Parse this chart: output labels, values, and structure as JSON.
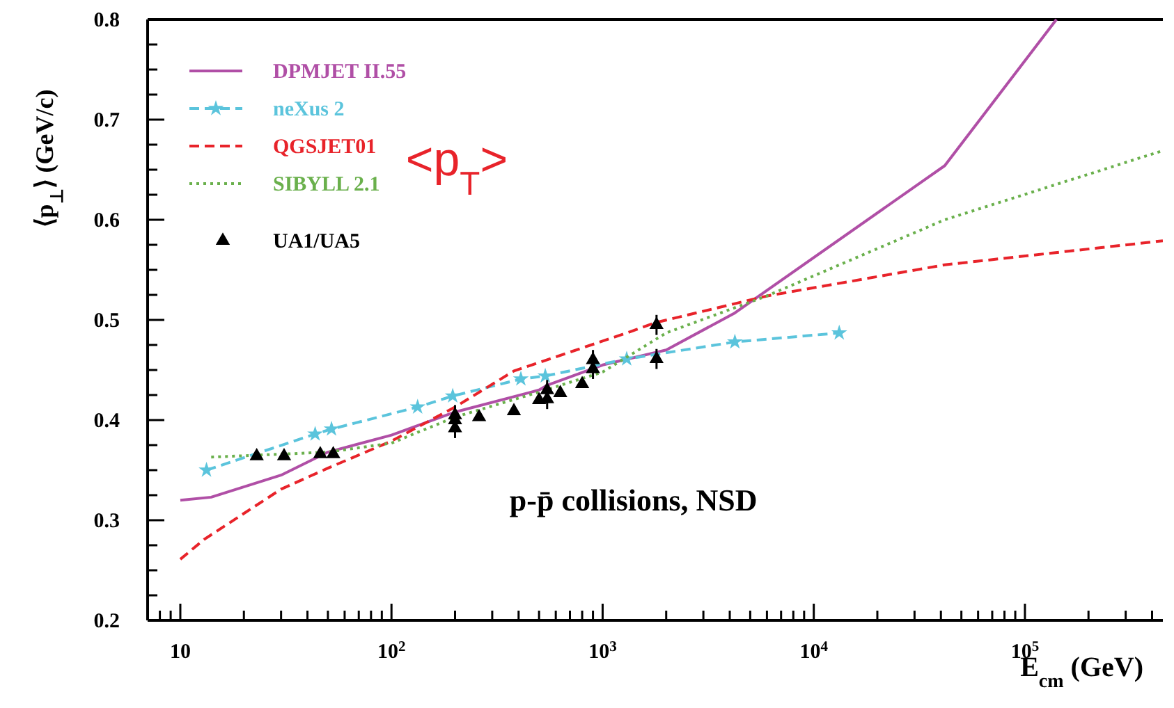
{
  "chart_data": {
    "type": "line",
    "xlabel": "E$_{cm}$ (GeV)",
    "ylabel": "⟨p$_{⊥}$⟩  (GeV/c)",
    "log": "x",
    "xlim": [
      7,
      450000
    ],
    "ylim": [
      0.2,
      0.8
    ],
    "xticks": [
      {
        "value": 8,
        "label": null
      },
      {
        "value": 9,
        "label": null
      },
      {
        "value": 10,
        "label": "10"
      },
      {
        "value": 20,
        "label": null
      },
      {
        "value": 30,
        "label": null
      },
      {
        "value": 40,
        "label": null
      },
      {
        "value": 50,
        "label": null
      },
      {
        "value": 60,
        "label": null
      },
      {
        "value": 70,
        "label": null
      },
      {
        "value": 80,
        "label": null
      },
      {
        "value": 90,
        "label": null
      },
      {
        "value": 100,
        "label": "10$^{2}$"
      },
      {
        "value": 200,
        "label": null
      },
      {
        "value": 300,
        "label": null
      },
      {
        "value": 400,
        "label": null
      },
      {
        "value": 500,
        "label": null
      },
      {
        "value": 600,
        "label": null
      },
      {
        "value": 700,
        "label": null
      },
      {
        "value": 800,
        "label": null
      },
      {
        "value": 900,
        "label": null
      },
      {
        "value": 1000,
        "label": "10$^{3}$"
      },
      {
        "value": 2000,
        "label": null
      },
      {
        "value": 3000,
        "label": null
      },
      {
        "value": 4000,
        "label": null
      },
      {
        "value": 5000,
        "label": null
      },
      {
        "value": 6000,
        "label": null
      },
      {
        "value": 7000,
        "label": null
      },
      {
        "value": 8000,
        "label": null
      },
      {
        "value": 9000,
        "label": null
      },
      {
        "value": 10000,
        "label": "10$^{4}$"
      },
      {
        "value": 20000,
        "label": null
      },
      {
        "value": 30000,
        "label": null
      },
      {
        "value": 40000,
        "label": null
      },
      {
        "value": 50000,
        "label": null
      },
      {
        "value": 60000,
        "label": null
      },
      {
        "value": 70000,
        "label": null
      },
      {
        "value": 80000,
        "label": null
      },
      {
        "value": 90000,
        "label": null
      },
      {
        "value": 100000,
        "label": "10$^{5}$"
      },
      {
        "value": 200000,
        "label": null
      },
      {
        "value": 300000,
        "label": null
      },
      {
        "value": 400000,
        "label": null
      }
    ],
    "yticks": [
      0.2,
      {
        "value": 0.225,
        "label": null
      },
      {
        "value": 0.25,
        "label": null
      },
      {
        "value": 0.275,
        "label": null
      },
      0.3,
      {
        "value": 0.325,
        "label": null
      },
      {
        "value": 0.35,
        "label": null
      },
      {
        "value": 0.375,
        "label": null
      },
      0.4,
      {
        "value": 0.425,
        "label": null
      },
      {
        "value": 0.45,
        "label": null
      },
      {
        "value": 0.475,
        "label": null
      },
      0.5,
      {
        "value": 0.525,
        "label": null
      },
      {
        "value": 0.55,
        "label": null
      },
      {
        "value": 0.575,
        "label": null
      },
      0.6,
      {
        "value": 0.625,
        "label": null
      },
      {
        "value": 0.65,
        "label": null
      },
      {
        "value": 0.675,
        "label": null
      },
      0.7,
      {
        "value": 0.725,
        "label": null
      },
      {
        "value": 0.75,
        "label": null
      },
      {
        "value": 0.775,
        "label": null
      },
      0.8
    ],
    "grid": false,
    "legend": "top left",
    "series": [
      {
        "name": "DPMJET II.55",
        "color": "#b04fa6",
        "line_style": "solid",
        "marker": "none",
        "x": [
          10,
          14,
          30,
          50,
          100,
          200,
          500,
          550,
          1000,
          2000,
          4230,
          41700,
          141000
        ],
        "values": [
          0.32,
          0.323,
          0.345,
          0.368,
          0.385,
          0.408,
          0.43,
          0.435,
          0.455,
          0.47,
          0.507,
          0.654,
          0.8
        ]
      },
      {
        "name": "neXus 2",
        "color": "#5bc4dc",
        "line_style": "dashed",
        "marker": "star",
        "x": [
          13.3,
          43.5,
          52,
          133,
          195,
          410,
          535,
          1300,
          4230,
          13200
        ],
        "values": [
          0.35,
          0.386,
          0.391,
          0.413,
          0.424,
          0.441,
          0.444,
          0.461,
          0.478,
          0.487
        ]
      },
      {
        "name": "QGSJET01",
        "color": "#e8232a",
        "line_style": "dashed",
        "marker": "none",
        "x": [
          10,
          13,
          30,
          50,
          100,
          200,
          380,
          1300,
          1760,
          6030,
          41700,
          450000
        ],
        "values": [
          0.261,
          0.281,
          0.331,
          0.352,
          0.379,
          0.413,
          0.449,
          0.487,
          0.497,
          0.524,
          0.555,
          0.579
        ]
      },
      {
        "name": "SIBYLL 2.1",
        "color": "#6ab04c",
        "line_style": "dotted",
        "marker": "none",
        "x": [
          14,
          50,
          100,
          200,
          500,
          1000,
          2000,
          6000,
          41700,
          450000
        ],
        "values": [
          0.363,
          0.368,
          0.377,
          0.403,
          0.428,
          0.448,
          0.487,
          0.524,
          0.6,
          0.669
        ]
      },
      {
        "name": "UA1/UA5",
        "type": "scatter",
        "color": "#000000",
        "marker": "triangle",
        "x": [
          23,
          31,
          46,
          53,
          200,
          200,
          200,
          260,
          380,
          500,
          546,
          546,
          630,
          800,
          900,
          900,
          1800,
          1800
        ],
        "values": [
          0.364,
          0.364,
          0.366,
          0.366,
          0.392,
          0.4,
          0.405,
          0.403,
          0.409,
          0.42,
          0.421,
          0.43,
          0.427,
          0.436,
          0.451,
          0.46,
          0.461,
          0.495
        ],
        "errors": [
          null,
          null,
          null,
          null,
          0.01,
          0.01,
          0.01,
          null,
          null,
          null,
          0.01,
          0.01,
          null,
          null,
          0.01,
          0.01,
          0.01,
          0.01
        ]
      }
    ],
    "annotations": [
      "p-p̄ collisions, NSD",
      "<p$_{T}$>"
    ]
  }
}
